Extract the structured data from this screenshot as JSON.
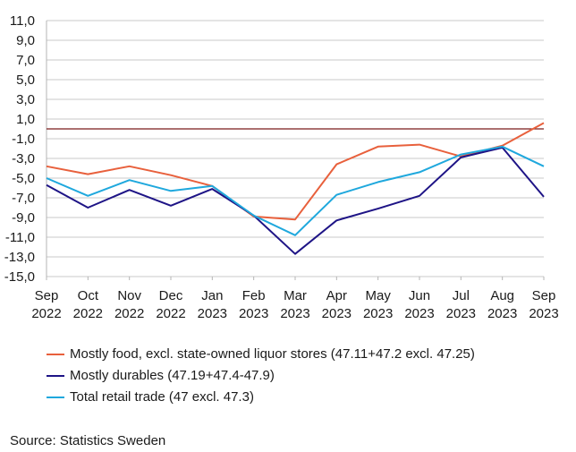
{
  "chart_data": {
    "type": "line",
    "title": "",
    "xlabel": "",
    "ylabel": "",
    "categories": [
      [
        "Sep",
        "2022"
      ],
      [
        "Oct",
        "2022"
      ],
      [
        "Nov",
        "2022"
      ],
      [
        "Dec",
        "2022"
      ],
      [
        "Jan",
        "2023"
      ],
      [
        "Feb",
        "2023"
      ],
      [
        "Mar",
        "2023"
      ],
      [
        "Apr",
        "2023"
      ],
      [
        "May",
        "2023"
      ],
      [
        "Jun",
        "2023"
      ],
      [
        "Jul",
        "2023"
      ],
      [
        "Aug",
        "2023"
      ],
      [
        "Sep",
        "2023"
      ]
    ],
    "yticks": [
      "11,0",
      "9,0",
      "7,0",
      "5,0",
      "3,0",
      "1,0",
      "-1,0",
      "-3,0",
      "-5,0",
      "-7,0",
      "-9,0",
      "-11,0",
      "-13,0",
      "-15,0"
    ],
    "ylim": [
      -15,
      11
    ],
    "grid": true,
    "legend_position": "bottom",
    "series": [
      {
        "name": "Mostly food, excl. state-owned liquor stores (47.11+47.2 excl. 47.25)",
        "color": "#e8603c",
        "values": [
          -3.8,
          -4.6,
          -3.8,
          -4.7,
          -5.8,
          -8.9,
          -9.2,
          -3.6,
          -1.8,
          -1.6,
          -2.8,
          -1.7,
          0.6
        ]
      },
      {
        "name": "Mostly durables (47.19+47.4-47.9)",
        "color": "#1e1486",
        "values": [
          -5.7,
          -8.0,
          -6.2,
          -7.8,
          -6.1,
          -8.8,
          -12.7,
          -9.3,
          -8.1,
          -6.8,
          -2.9,
          -1.9,
          -6.9
        ]
      },
      {
        "name": "Total retail trade (47 excl. 47.3)",
        "color": "#1fa8dd",
        "values": [
          -5.0,
          -6.8,
          -5.2,
          -6.3,
          -5.8,
          -8.8,
          -10.8,
          -6.7,
          -5.4,
          -4.4,
          -2.6,
          -1.8,
          -3.8
        ]
      }
    ]
  },
  "source": "Source: Statistics Sweden"
}
